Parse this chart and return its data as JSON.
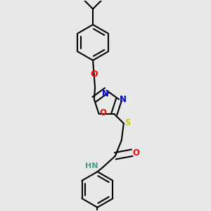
{
  "background_color": "#e8e8e8",
  "line_color": "#000000",
  "bond_width": 1.5,
  "figsize": [
    3.0,
    3.0
  ],
  "dpi": 100,
  "atom_colors": {
    "O": "#ff0000",
    "N": "#0000cc",
    "S": "#cccc00",
    "NH": "#4a9a8a",
    "C": "#000000"
  },
  "xlim": [
    0.15,
    0.85
  ],
  "ylim": [
    0.02,
    1.02
  ]
}
